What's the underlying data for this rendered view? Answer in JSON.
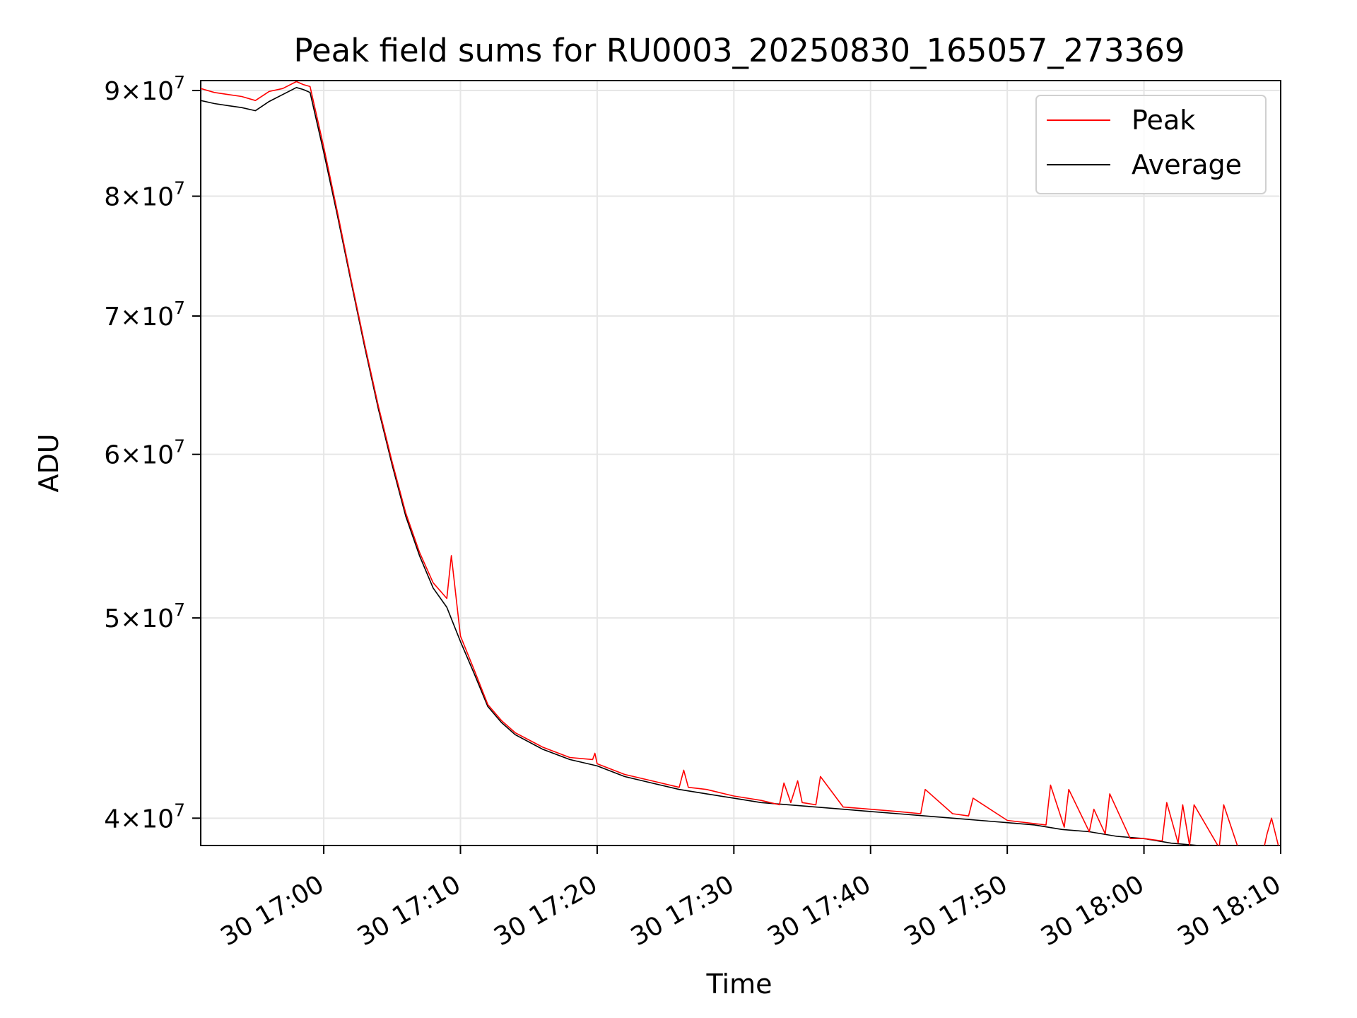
{
  "chart_data": {
    "type": "line",
    "title": "Peak field sums for RU0003_20250830_165057_273369",
    "xlabel": "Time",
    "ylabel": "ADU",
    "yscale": "log",
    "grid": true,
    "legend": "top-right",
    "xlim": [
      "2025-08-30 16:51:00",
      "2025-08-30 18:10:00"
    ],
    "ylim": [
      38800000,
      91000000
    ],
    "x_ticks": [
      {
        "value": "2025-08-30 17:00:00",
        "label": "30 17:00"
      },
      {
        "value": "2025-08-30 17:10:00",
        "label": "30 17:10"
      },
      {
        "value": "2025-08-30 17:20:00",
        "label": "30 17:20"
      },
      {
        "value": "2025-08-30 17:30:00",
        "label": "30 17:30"
      },
      {
        "value": "2025-08-30 17:40:00",
        "label": "30 17:40"
      },
      {
        "value": "2025-08-30 17:50:00",
        "label": "30 17:50"
      },
      {
        "value": "2025-08-30 18:00:00",
        "label": "30 18:00"
      },
      {
        "value": "2025-08-30 18:10:00",
        "label": "30 18:10"
      }
    ],
    "y_ticks": [
      {
        "value": 40000000,
        "mantissa": "4",
        "exponent": "7"
      },
      {
        "value": 50000000,
        "mantissa": "5",
        "exponent": "7"
      },
      {
        "value": 60000000,
        "mantissa": "6",
        "exponent": "7"
      },
      {
        "value": 70000000,
        "mantissa": "7",
        "exponent": "7"
      },
      {
        "value": 80000000,
        "mantissa": "8",
        "exponent": "7"
      },
      {
        "value": 90000000,
        "mantissa": "9",
        "exponent": "7"
      }
    ],
    "series": [
      {
        "name": "Peak",
        "color": "#ff0000",
        "x": [
          "2025-08-30 16:51:00",
          "2025-08-30 16:52:00",
          "2025-08-30 16:53:00",
          "2025-08-30 16:54:00",
          "2025-08-30 16:55:00",
          "2025-08-30 16:56:00",
          "2025-08-30 16:57:00",
          "2025-08-30 16:58:00",
          "2025-08-30 16:58:30",
          "2025-08-30 16:59:00",
          "2025-08-30 17:00:00",
          "2025-08-30 17:01:00",
          "2025-08-30 17:02:00",
          "2025-08-30 17:03:00",
          "2025-08-30 17:04:00",
          "2025-08-30 17:05:00",
          "2025-08-30 17:06:00",
          "2025-08-30 17:07:00",
          "2025-08-30 17:08:00",
          "2025-08-30 17:09:00",
          "2025-08-30 17:09:20",
          "2025-08-30 17:10:00",
          "2025-08-30 17:11:00",
          "2025-08-30 17:12:00",
          "2025-08-30 17:13:00",
          "2025-08-30 17:14:00",
          "2025-08-30 17:16:00",
          "2025-08-30 17:18:00",
          "2025-08-30 17:19:40",
          "2025-08-30 17:19:50",
          "2025-08-30 17:20:00",
          "2025-08-30 17:22:00",
          "2025-08-30 17:24:00",
          "2025-08-30 17:26:00",
          "2025-08-30 17:26:20",
          "2025-08-30 17:26:40",
          "2025-08-30 17:28:00",
          "2025-08-30 17:30:00",
          "2025-08-30 17:32:00",
          "2025-08-30 17:33:20",
          "2025-08-30 17:33:40",
          "2025-08-30 17:34:10",
          "2025-08-30 17:34:40",
          "2025-08-30 17:35:00",
          "2025-08-30 17:36:00",
          "2025-08-30 17:36:20",
          "2025-08-30 17:38:00",
          "2025-08-30 17:40:00",
          "2025-08-30 17:42:00",
          "2025-08-30 17:43:40",
          "2025-08-30 17:44:00",
          "2025-08-30 17:46:00",
          "2025-08-30 17:47:10",
          "2025-08-30 17:47:30",
          "2025-08-30 17:50:00",
          "2025-08-30 17:52:50",
          "2025-08-30 17:53:10",
          "2025-08-30 17:54:10",
          "2025-08-30 17:54:30",
          "2025-08-30 17:56:00",
          "2025-08-30 17:56:20",
          "2025-08-30 17:57:10",
          "2025-08-30 17:57:30",
          "2025-08-30 17:59:00",
          "2025-08-30 18:00:00",
          "2025-08-30 18:01:20",
          "2025-08-30 18:01:40",
          "2025-08-30 18:02:30",
          "2025-08-30 18:02:50",
          "2025-08-30 18:03:20",
          "2025-08-30 18:03:40",
          "2025-08-30 18:05:30",
          "2025-08-30 18:05:50",
          "2025-08-30 18:07:00",
          "2025-08-30 18:08:40",
          "2025-08-30 18:09:00",
          "2025-08-30 18:09:20",
          "2025-08-30 18:10:00"
        ],
        "y": [
          90200000,
          89800000,
          89600000,
          89400000,
          89000000,
          89900000,
          90200000,
          90900000,
          90600000,
          90400000,
          84500000,
          78600000,
          72900000,
          67800000,
          63300000,
          59500000,
          56200000,
          53800000,
          52000000,
          51100000,
          53600000,
          49000000,
          47200000,
          45400000,
          44600000,
          44000000,
          43300000,
          42800000,
          42700000,
          43000000,
          42500000,
          42000000,
          41700000,
          41400000,
          42200000,
          41400000,
          41300000,
          41000000,
          40800000,
          40600000,
          41600000,
          40700000,
          41700000,
          40700000,
          40600000,
          41900000,
          40500000,
          40400000,
          40300000,
          40200000,
          41300000,
          40200000,
          40100000,
          40900000,
          39900000,
          39700000,
          41500000,
          39600000,
          41300000,
          39400000,
          40400000,
          39300000,
          41100000,
          39100000,
          39100000,
          39000000,
          40700000,
          38900000,
          40600000,
          38800000,
          40600000,
          38700000,
          40600000,
          38500000,
          38400000,
          39300000,
          40000000,
          38400000
        ]
      },
      {
        "name": "Average",
        "color": "#000000",
        "x": [
          "2025-08-30 16:51:00",
          "2025-08-30 16:52:00",
          "2025-08-30 16:53:00",
          "2025-08-30 16:54:00",
          "2025-08-30 16:55:00",
          "2025-08-30 16:56:00",
          "2025-08-30 16:57:00",
          "2025-08-30 16:58:00",
          "2025-08-30 16:58:30",
          "2025-08-30 16:59:00",
          "2025-08-30 17:00:00",
          "2025-08-30 17:01:00",
          "2025-08-30 17:02:00",
          "2025-08-30 17:03:00",
          "2025-08-30 17:04:00",
          "2025-08-30 17:05:00",
          "2025-08-30 17:06:00",
          "2025-08-30 17:07:00",
          "2025-08-30 17:08:00",
          "2025-08-30 17:09:00",
          "2025-08-30 17:10:00",
          "2025-08-30 17:11:00",
          "2025-08-30 17:12:00",
          "2025-08-30 17:13:00",
          "2025-08-30 17:14:00",
          "2025-08-30 17:16:00",
          "2025-08-30 17:18:00",
          "2025-08-30 17:20:00",
          "2025-08-30 17:22:00",
          "2025-08-30 17:24:00",
          "2025-08-30 17:26:00",
          "2025-08-30 17:28:00",
          "2025-08-30 17:30:00",
          "2025-08-30 17:32:00",
          "2025-08-30 17:34:00",
          "2025-08-30 17:36:00",
          "2025-08-30 17:38:00",
          "2025-08-30 17:40:00",
          "2025-08-30 17:42:00",
          "2025-08-30 17:44:00",
          "2025-08-30 17:46:00",
          "2025-08-30 17:48:00",
          "2025-08-30 17:50:00",
          "2025-08-30 17:52:00",
          "2025-08-30 17:54:00",
          "2025-08-30 17:56:00",
          "2025-08-30 17:58:00",
          "2025-08-30 18:00:00",
          "2025-08-30 18:02:00",
          "2025-08-30 18:04:00",
          "2025-08-30 18:06:00",
          "2025-08-30 18:08:00",
          "2025-08-30 18:10:00"
        ],
        "y": [
          89000000,
          88700000,
          88500000,
          88300000,
          88000000,
          88900000,
          89600000,
          90300000,
          90100000,
          89800000,
          84000000,
          78300000,
          72700000,
          67600000,
          63100000,
          59300000,
          56000000,
          53600000,
          51700000,
          50600000,
          48700000,
          47000000,
          45300000,
          44500000,
          43900000,
          43200000,
          42700000,
          42400000,
          41900000,
          41600000,
          41300000,
          41100000,
          40900000,
          40700000,
          40600000,
          40500000,
          40400000,
          40300000,
          40200000,
          40100000,
          40000000,
          39900000,
          39800000,
          39700000,
          39500000,
          39400000,
          39200000,
          39100000,
          38900000,
          38800000,
          38700000,
          38500000,
          38300000
        ]
      }
    ]
  }
}
